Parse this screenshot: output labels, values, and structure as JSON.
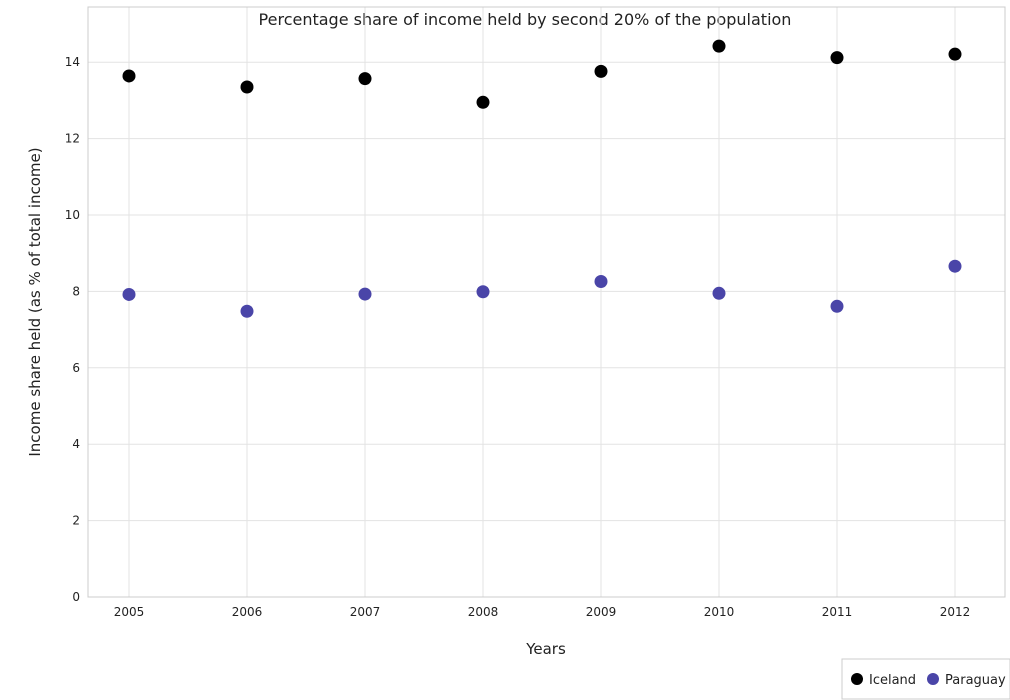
{
  "chart_data": {
    "type": "scatter",
    "title": "Percentage share of income held by second 20% of the population",
    "xlabel": "Years",
    "ylabel": "Income share held (as % of total income)",
    "categories": [
      "2005",
      "2006",
      "2007",
      "2008",
      "2009",
      "2010",
      "2011",
      "2012"
    ],
    "ylim": [
      0,
      14.8
    ],
    "yticks": [
      0,
      2,
      4,
      6,
      8,
      10,
      12,
      14
    ],
    "grid": true,
    "legend_position": "bottom-right",
    "series": [
      {
        "name": "Iceland",
        "color": "#000000",
        "values": [
          13.64,
          13.35,
          13.57,
          12.95,
          13.76,
          14.42,
          14.12,
          14.21
        ]
      },
      {
        "name": "Paraguay",
        "color": "#4a45a8",
        "values": [
          7.92,
          7.48,
          7.93,
          7.99,
          8.26,
          7.95,
          7.61,
          8.66
        ]
      }
    ]
  }
}
